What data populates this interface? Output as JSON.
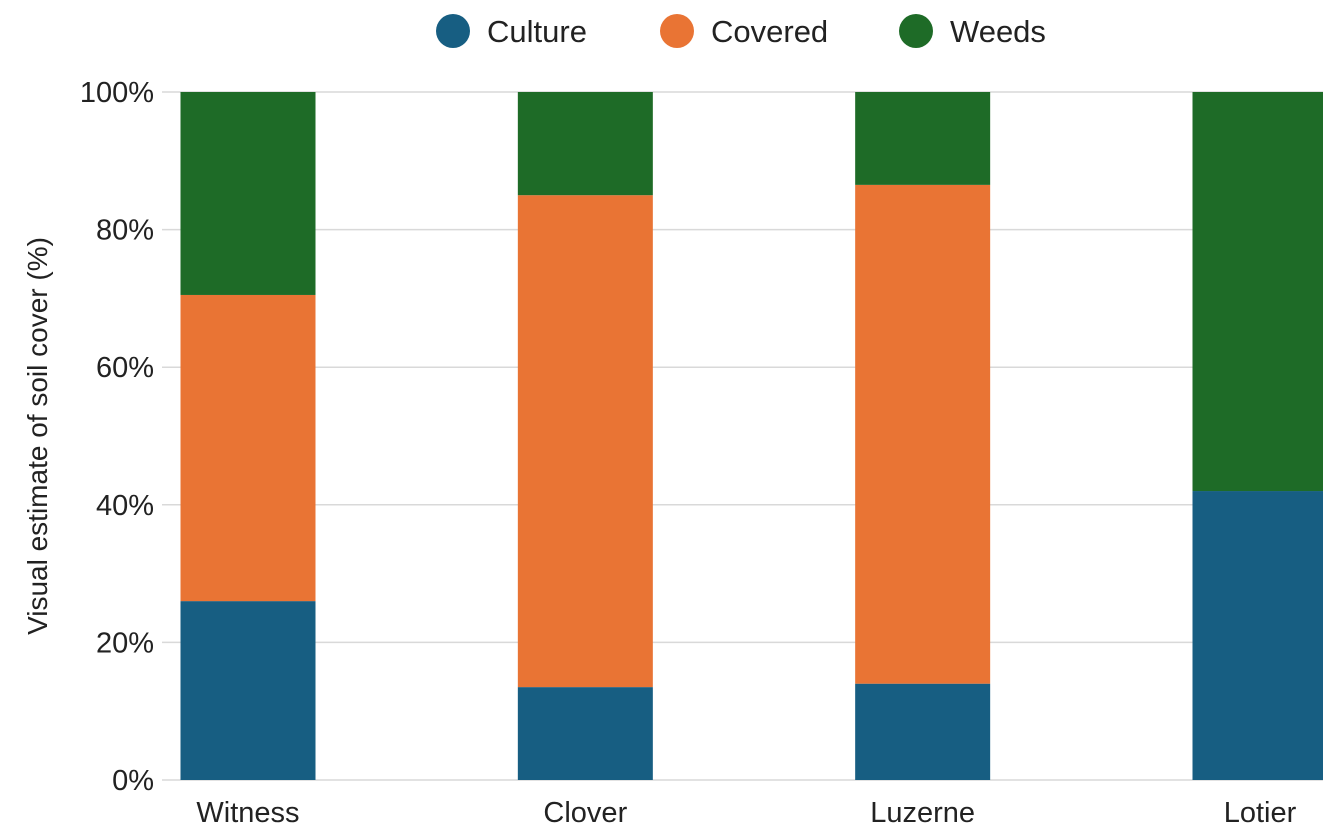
{
  "chart_data": {
    "type": "bar",
    "stacked": true,
    "normalized": true,
    "ylabel": "Visual estimate of soil cover (%)",
    "xlabel": "",
    "ylim": [
      0,
      100
    ],
    "yticks": [
      "0%",
      "20%",
      "40%",
      "60%",
      "80%",
      "100%"
    ],
    "categories": [
      "Witness",
      "Clover",
      "Luzerne",
      "Lotier"
    ],
    "series": [
      {
        "name": "Culture",
        "color": "#175e82",
        "values": [
          26,
          13.5,
          14,
          42
        ]
      },
      {
        "name": "Covered",
        "color": "#e97434",
        "values": [
          44.5,
          71.5,
          72.5,
          0
        ]
      },
      {
        "name": "Weeds",
        "color": "#1e6b27",
        "values": [
          29.5,
          15,
          13.5,
          58
        ]
      }
    ],
    "legend_position": "top-center",
    "grid": "horizontal"
  }
}
